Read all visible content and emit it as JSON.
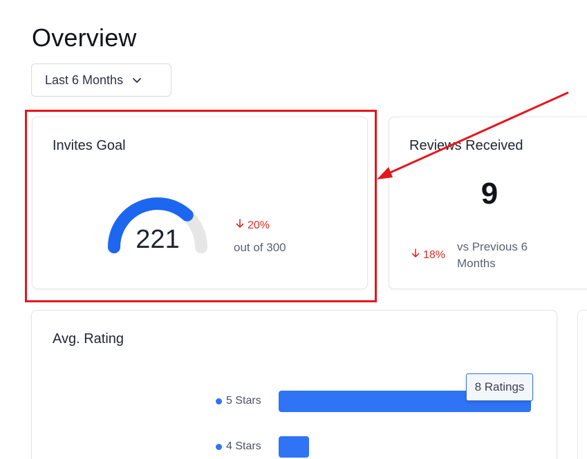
{
  "page": {
    "title": "Overview"
  },
  "filter": {
    "period": "Last 6 Months",
    "icon": "chevron-down-icon"
  },
  "invites_goal": {
    "title": "Invites Goal",
    "value": "221",
    "goal_caption": "out of 300",
    "progress_fraction": 0.737,
    "change": "20%",
    "change_direction": "down",
    "colors": {
      "fill": "#1d66f0",
      "track": "#e6e6e6",
      "negative": "#d92d20"
    }
  },
  "reviews_received": {
    "title": "Reviews Received",
    "value": "9",
    "change": "18%",
    "change_direction": "down",
    "comparison": "vs Previous 6 Months"
  },
  "avg_rating": {
    "title": "Avg. Rating",
    "tooltip": "8 Ratings",
    "bar_color": "#2f74f5",
    "rows": [
      {
        "label": "5 Stars",
        "fraction": 1.0
      },
      {
        "label": "4 Stars",
        "fraction": 0.12
      }
    ]
  },
  "annotation": {
    "color": "#e8141b"
  }
}
